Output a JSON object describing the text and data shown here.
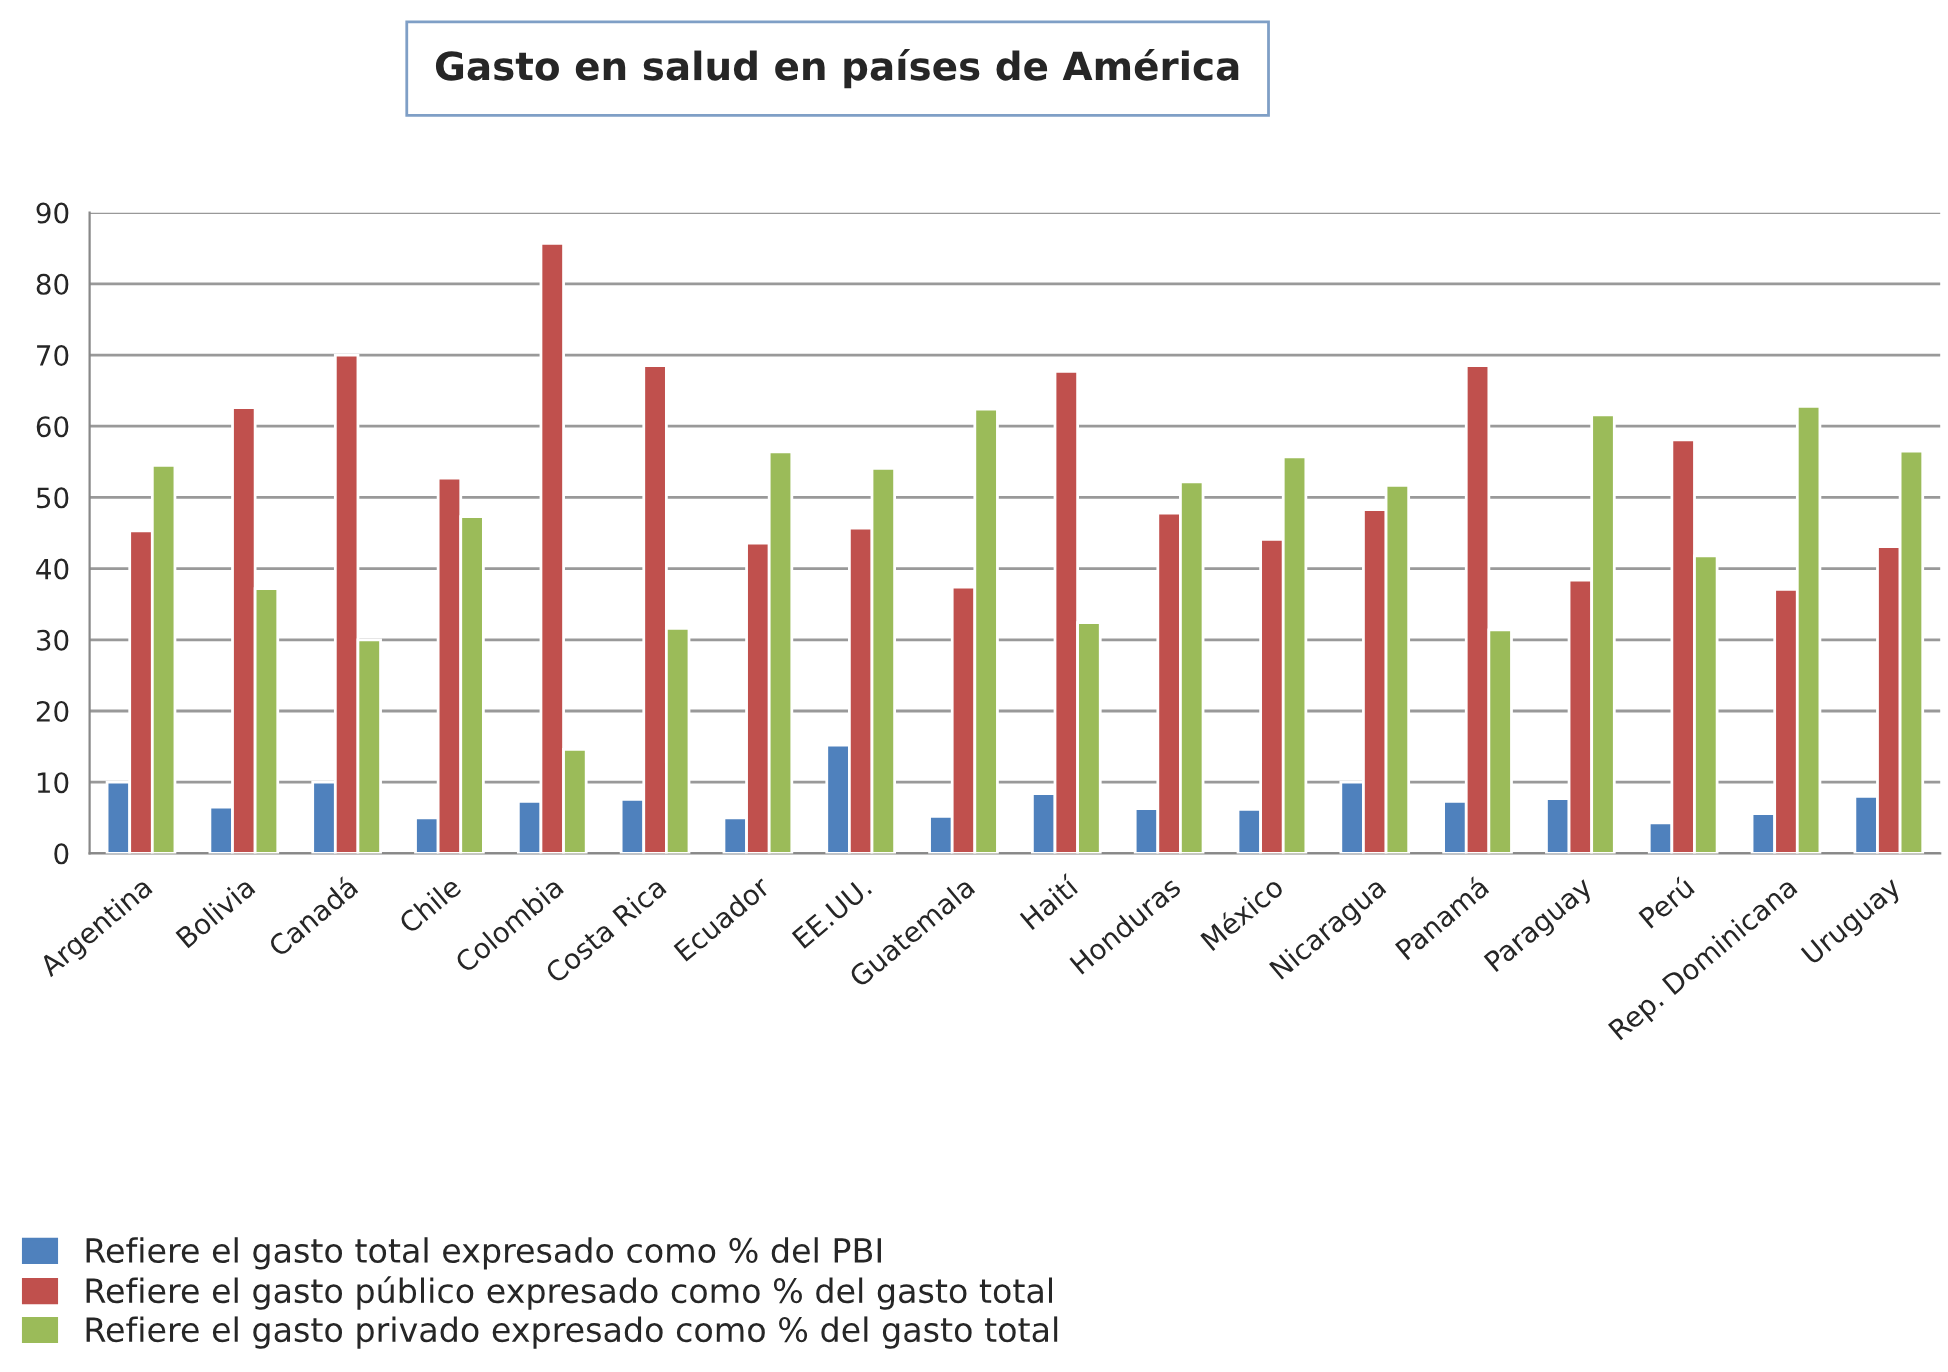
{
  "chart_data": {
    "type": "bar",
    "title": "Gasto en salud en países de América",
    "categories": [
      "Argentina",
      "Bolivia",
      "Canadá",
      "Chile",
      "Colombia",
      "Costa Rica",
      "Ecuador",
      "EE.UU.",
      "Guatemala",
      "Haití",
      "Honduras",
      "México",
      "Nicaragua",
      "Panamá",
      "Paraguay",
      "Perú",
      "Rep. Dominicana",
      "Uruguay"
    ],
    "series": [
      {
        "name": "Refiere el gasto total expresado como % del PBI",
        "color": "#4f81bd",
        "values": [
          10,
          6.5,
          10,
          5,
          7.3,
          7.6,
          5,
          15.2,
          5.2,
          8.4,
          6.3,
          6.2,
          10,
          7.3,
          7.7,
          4.3,
          5.6,
          8
        ]
      },
      {
        "name": "Refiere el gasto público expresado como % del gasto total",
        "color": "#c0504d",
        "values": [
          45.3,
          62.6,
          70,
          52.7,
          85.7,
          68.5,
          43.6,
          45.7,
          37.4,
          67.7,
          47.8,
          44.1,
          48.3,
          68.5,
          38.4,
          58.1,
          37.1,
          43.1
        ]
      },
      {
        "name": "Refiere el gasto privado expresado como % del gasto total",
        "color": "#9bbb59",
        "values": [
          54.5,
          37.2,
          30,
          47.3,
          14.6,
          31.6,
          56.4,
          54.1,
          62.4,
          32.4,
          52.2,
          55.7,
          51.7,
          31.4,
          61.6,
          41.8,
          62.8,
          56.5
        ]
      }
    ],
    "ylim": [
      0,
      90
    ],
    "yticks": [
      0,
      10,
      20,
      30,
      40,
      50,
      60,
      70,
      80,
      90
    ],
    "grid": "y",
    "legend": "bottom left"
  }
}
